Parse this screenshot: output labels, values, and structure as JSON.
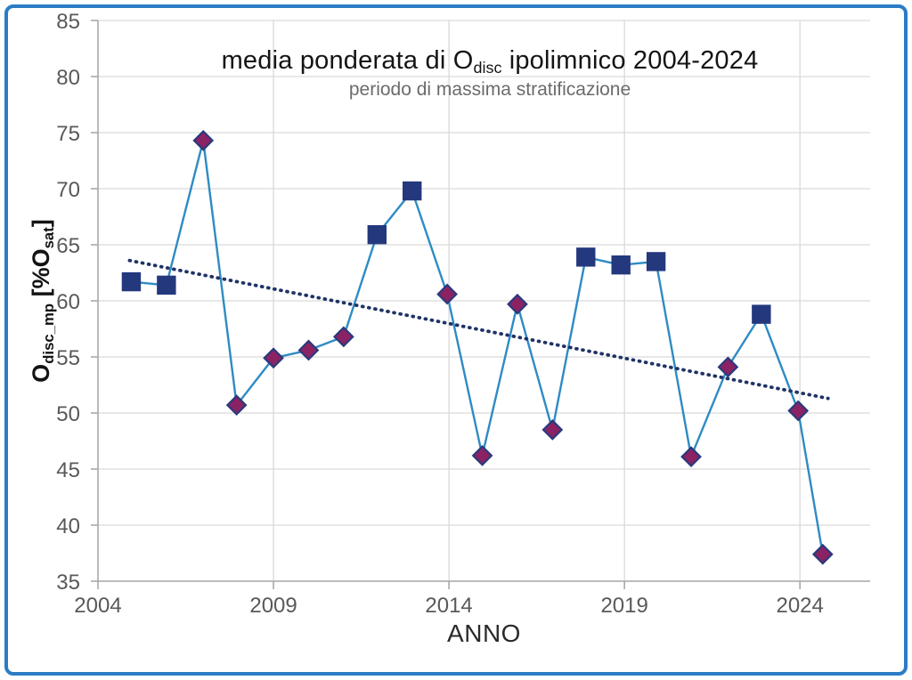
{
  "figure": {
    "title": {
      "prefix": "media ponderata di O",
      "sub": "disc",
      "suffix": " ipolimnico 2004-2024"
    },
    "subtitle": "periodo di massima stratificazione",
    "x_axis_label": "ANNO",
    "y_axis_label": {
      "prefix": "O",
      "sub1": "disc_mp",
      "mid": " [%O",
      "sub2": "sat",
      "end": "]"
    }
  },
  "colors": {
    "frame_border": "#2b7cc4",
    "gridline": "#d9d9d9",
    "axis_line": "#a8a8a8",
    "tick_label": "#595959",
    "series_line": "#2e8bc4",
    "square_marker": "#24387e",
    "diamond_fill": "#8a2263",
    "diamond_stroke": "#2a3a7c",
    "trend_line": "#1f3366"
  },
  "chart_data": {
    "type": "line",
    "title": "media ponderata di Odisc ipolimnico 2004-2024",
    "subtitle": "periodo di massima stratificazione",
    "xlabel": "ANNO",
    "ylabel": "Odisc_mp [%Osat]",
    "xlim": [
      2004,
      2026
    ],
    "ylim": [
      35,
      85
    ],
    "x_ticks": [
      2004,
      2009,
      2014,
      2019,
      2024
    ],
    "y_ticks": [
      85,
      80,
      75,
      70,
      65,
      60,
      55,
      50,
      45,
      40,
      35
    ],
    "grid": true,
    "legend": false,
    "series": [
      {
        "name": "media ponderata O_disc ipolimnico",
        "years": [
          2004,
          2005,
          2006,
          2007,
          2008,
          2009,
          2010,
          2011,
          2012,
          2013,
          2014,
          2015,
          2016,
          2017,
          2018,
          2019,
          2020,
          2021,
          2022,
          2023,
          2024
        ],
        "values": [
          61.7,
          61.4,
          74.3,
          50.7,
          54.9,
          55.6,
          56.8,
          65.9,
          69.8,
          60.6,
          46.2,
          59.7,
          48.5,
          63.9,
          63.2,
          63.5,
          46.1,
          54.1,
          58.8,
          50.2,
          37.4
        ],
        "markers": [
          "square",
          "square",
          "diamond",
          "diamond",
          "diamond",
          "diamond",
          "diamond",
          "square",
          "square",
          "diamond",
          "diamond",
          "diamond",
          "diamond",
          "square",
          "square",
          "square",
          "diamond",
          "diamond",
          "square",
          "diamond",
          "diamond"
        ],
        "x_plot": [
          2004.95,
          2005.95,
          2007.0,
          2007.95,
          2009.0,
          2010.0,
          2011.0,
          2011.95,
          2012.95,
          2013.95,
          2014.95,
          2015.95,
          2016.95,
          2017.9,
          2018.9,
          2019.9,
          2020.9,
          2021.95,
          2022.9,
          2023.95,
          2024.65
        ]
      }
    ],
    "trend": {
      "x1": 2004.9,
      "y1": 63.6,
      "x2": 2024.8,
      "y2": 51.3,
      "style": "dotted"
    }
  }
}
